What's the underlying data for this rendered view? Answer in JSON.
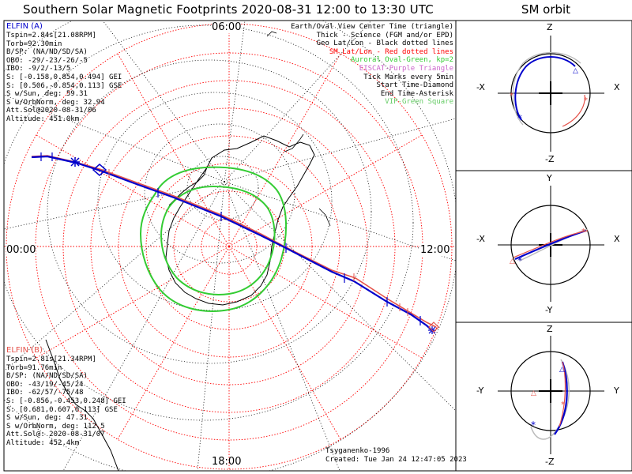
{
  "title": "Southern Solar Magnetic Footprints 2020-08-31 12:00 to 13:30 UTC",
  "orbit_title": "SM orbit",
  "clock_labels": {
    "top": "06:00",
    "left": "00:00",
    "right": "12:00",
    "bottom": "18:00"
  },
  "elfin_a": {
    "name": "ELFIN (A)",
    "lines": [
      "Tspin=2.84s[21.08RPM]",
      "Torb=92.30min",
      "B/SP: (NA/ND/SD/SA)",
      "OBO: -29/-23/-26/-5",
      "IBO: -9/2/-13/5",
      "S: [-0.158,0.854,0.494] GEI",
      "S: [0.506,-0.854,0.113] GSE",
      "S w/Sun, deg: 59.31",
      "S w/OrbNorm, deg: 32.94",
      "Att.Sol@2020-08-31/06",
      "Altitude: 451.0km"
    ]
  },
  "elfin_b": {
    "name": "ELFIN (B)",
    "lines": [
      "Tspin=2.81s[21.34RPM]",
      "Torb=91.76min",
      "B/SP: (NA/ND/SD/SA)",
      "OBO: -43/19/-45/24",
      "IBO: -62/57/-75/48",
      "S: [-0.856,-0.453,0.248] GEI",
      "S: [0.681,0.607,0.113] GSE",
      "S w/Sun, deg: 47.31",
      "S w/OrbNorm, deg: 112.5",
      "Att.Sol@: 2020-08-31/07",
      "Altitude: 452.4km"
    ]
  },
  "legend": [
    {
      "text": "Earth/Oval View Center Time (triangle)",
      "color": "#000000"
    },
    {
      "text": "Thick - Science (FGM and/or EPD)",
      "color": "#000000"
    },
    {
      "text": "Geo Lat/Lon - Black dotted lines",
      "color": "#000000"
    },
    {
      "text": "SM Lat/Lon - Red dotted lines",
      "color": "#ff0000"
    },
    {
      "text": "Auroral Oval-Green, kp=2",
      "color": "#33cc33"
    },
    {
      "text": "EISCAT-Purple Triangle",
      "color": "#cc66cc"
    },
    {
      "text": "Tick Marks every 5min",
      "color": "#000000"
    },
    {
      "text": "Start Time-Diamond",
      "color": "#000000"
    },
    {
      "text": "End Time-Asterisk",
      "color": "#000000"
    },
    {
      "text": "VIP-Green Square",
      "color": "#66cc66"
    }
  ],
  "credits": {
    "author": "Tsyganenko-1996",
    "created": "Created: Tue Jan 24 12:47:05 2023"
  },
  "orbit_panels": [
    {
      "top": "Z",
      "bottom": "-Z",
      "left": "-X",
      "right": "X"
    },
    {
      "top": "Y",
      "bottom": "-Y",
      "left": "-X",
      "right": "X"
    },
    {
      "top": "Z",
      "bottom": "-Z",
      "left": "-Y",
      "right": "Y"
    }
  ],
  "colors": {
    "elfin_a": "#0000cc",
    "elfin_b": "#e5534b",
    "auroral_oval": "#33cc33",
    "sm_grid": "#ff0000",
    "geo_grid": "#000000"
  }
}
